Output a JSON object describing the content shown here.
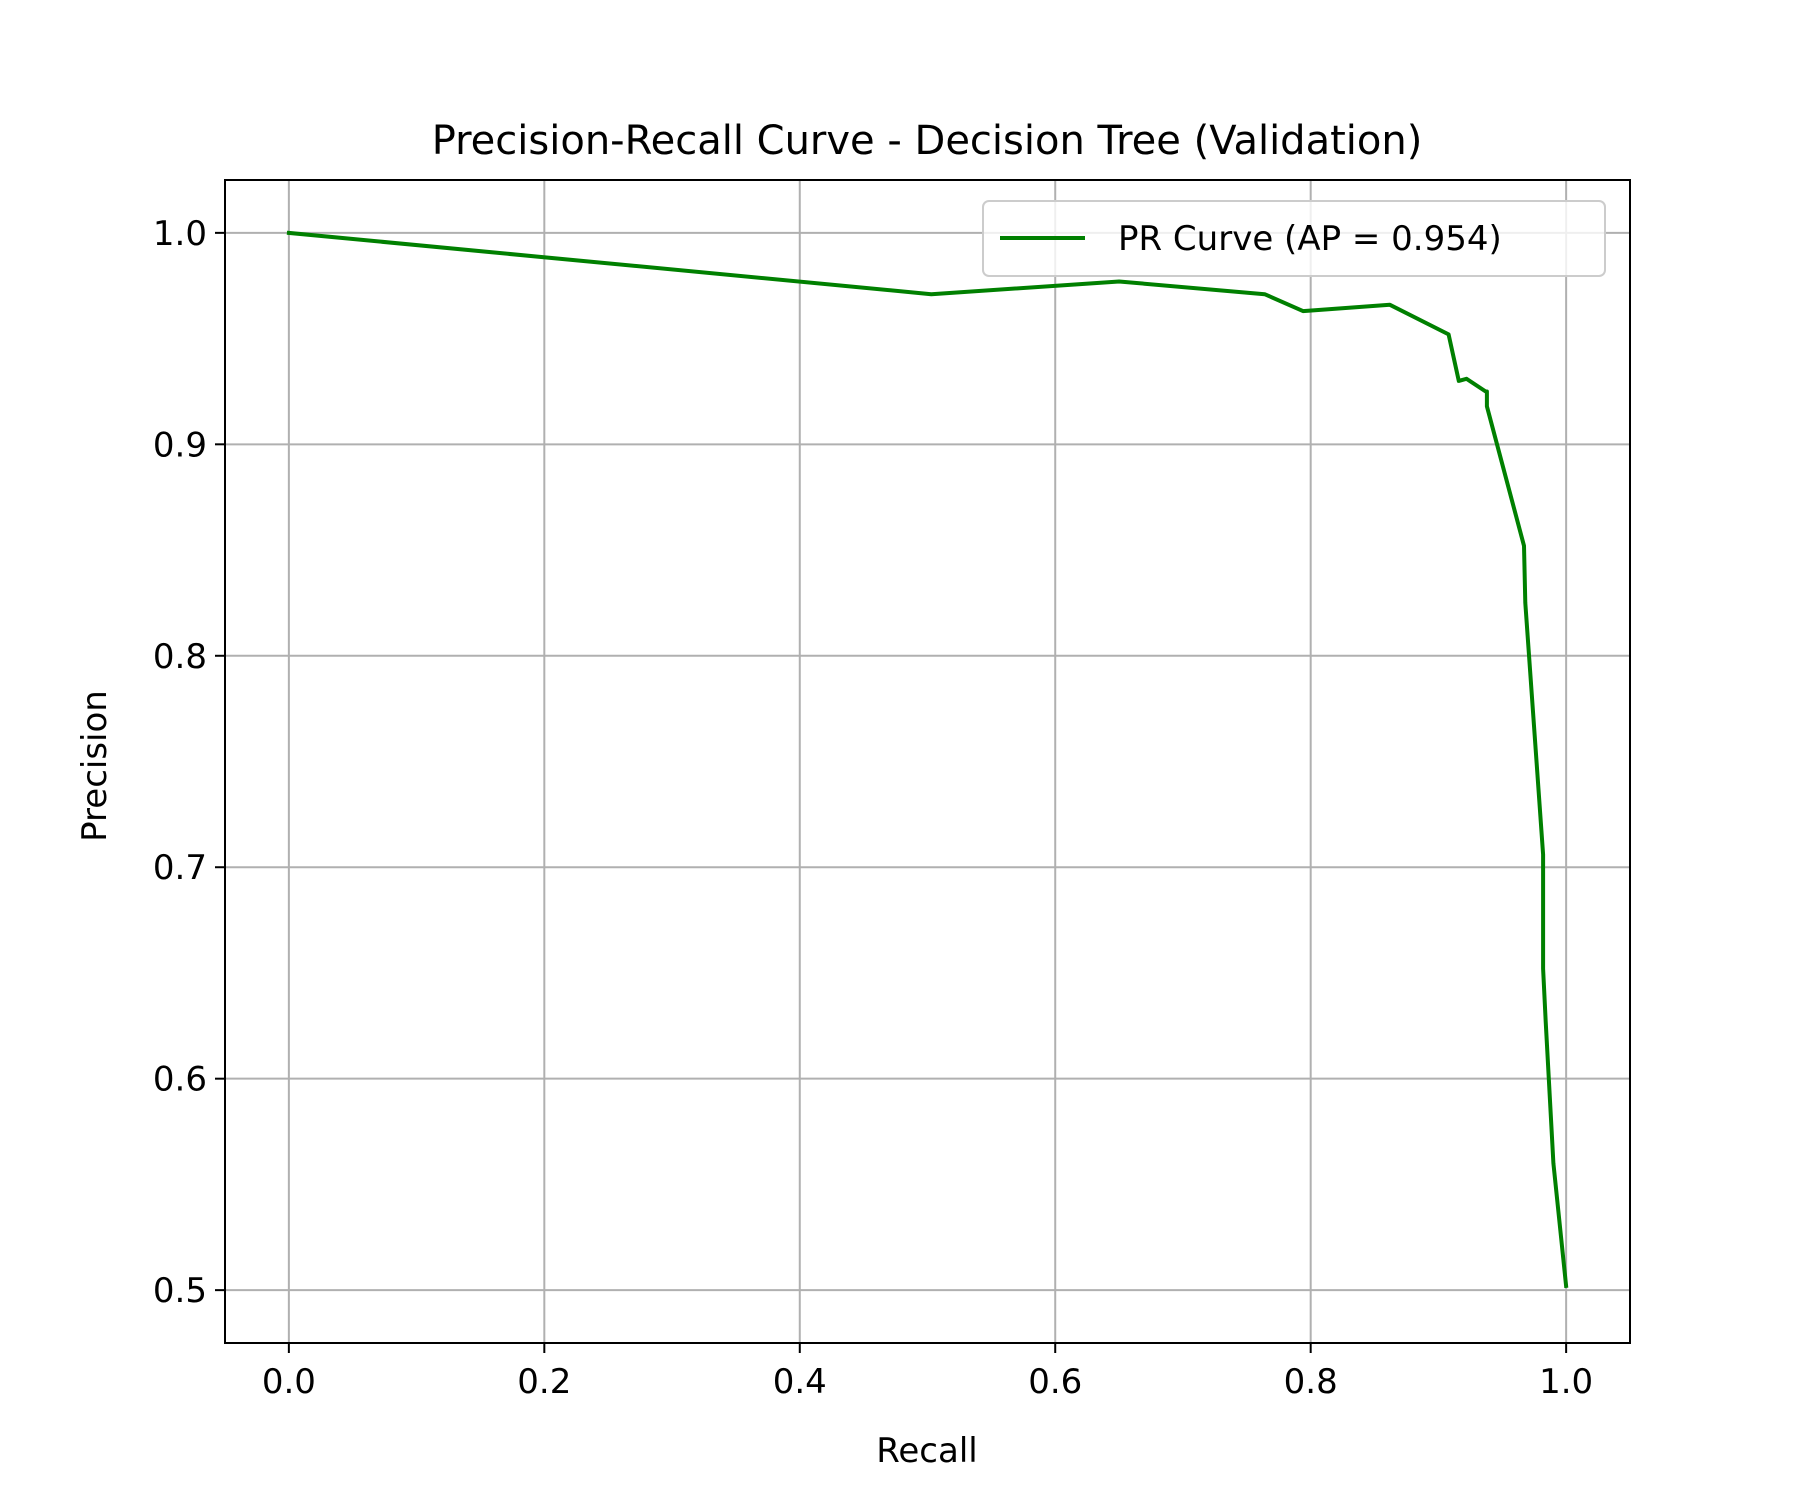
{
  "chart_data": {
    "type": "line",
    "title": "Precision-Recall Curve - Decision Tree (Validation)",
    "xlabel": "Recall",
    "ylabel": "Precision",
    "xlim": [
      -0.05,
      1.05
    ],
    "ylim": [
      0.475,
      1.025
    ],
    "xticks": [
      0.0,
      0.2,
      0.4,
      0.6,
      0.8,
      1.0
    ],
    "xtick_labels": [
      "0.0",
      "0.2",
      "0.4",
      "0.6",
      "0.8",
      "1.0"
    ],
    "yticks": [
      0.5,
      0.6,
      0.7,
      0.8,
      0.9,
      1.0
    ],
    "ytick_labels": [
      "0.5",
      "0.6",
      "0.7",
      "0.8",
      "0.9",
      "1.0"
    ],
    "grid": true,
    "legend_position": "upper right",
    "series": [
      {
        "name": "PR Curve (AP = 0.954)",
        "color": "#008000",
        "x": [
          0.0,
          0.503,
          0.65,
          0.764,
          0.794,
          0.862,
          0.908,
          0.916,
          0.922,
          0.937,
          0.938,
          0.938,
          0.967,
          0.967,
          0.968,
          0.982,
          0.982,
          0.982,
          0.984,
          0.99,
          1.0
        ],
        "y": [
          1.0,
          0.971,
          0.977,
          0.971,
          0.963,
          0.966,
          0.952,
          0.93,
          0.931,
          0.925,
          0.925,
          0.918,
          0.852,
          0.852,
          0.825,
          0.706,
          0.706,
          0.652,
          0.627,
          0.56,
          0.502
        ]
      }
    ]
  }
}
